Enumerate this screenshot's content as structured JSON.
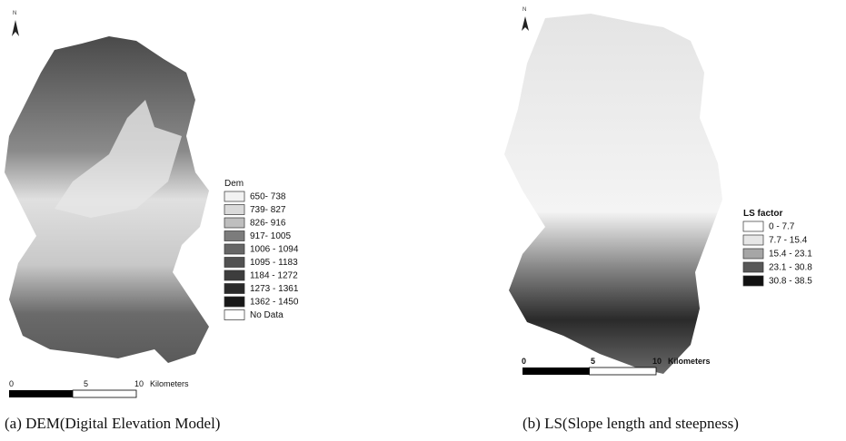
{
  "panels": [
    {
      "north_label": "N",
      "legend_title": "Dem",
      "legend": [
        {
          "label": "650- 738",
          "color": "#f2f2f2"
        },
        {
          "label": "739- 827",
          "color": "#dadada"
        },
        {
          "label": "826- 916",
          "color": "#bebebe"
        },
        {
          "label": "917- 1005",
          "color": "#7c7c7c"
        },
        {
          "label": "1006 - 1094",
          "color": "#666666"
        },
        {
          "label": "1095 - 1183",
          "color": "#515151"
        },
        {
          "label": "1184 - 1272",
          "color": "#3d3d3d"
        },
        {
          "label": "1273 - 1361",
          "color": "#2a2a2a"
        },
        {
          "label": "1362 - 1450",
          "color": "#181818"
        },
        {
          "label": "No Data",
          "color": "#ffffff"
        }
      ],
      "scale_ticks": [
        "0",
        "5",
        "10"
      ],
      "scale_unit": "Kilometers",
      "caption": "(a) DEM(Digital Elevation Model)"
    },
    {
      "north_label": "N",
      "legend_title": "LS factor",
      "legend": [
        {
          "label": "0 - 7.7",
          "color": "#ffffff"
        },
        {
          "label": "7.7 - 15.4",
          "color": "#e6e6e6"
        },
        {
          "label": "15.4 - 23.1",
          "color": "#a6a6a6"
        },
        {
          "label": "23.1 - 30.8",
          "color": "#585858"
        },
        {
          "label": "30.8 - 38.5",
          "color": "#111111"
        }
      ],
      "scale_ticks": [
        "0",
        "5",
        "10"
      ],
      "scale_unit": "Kilometers",
      "caption": "(b) LS(Slope length and steepness)"
    }
  ]
}
